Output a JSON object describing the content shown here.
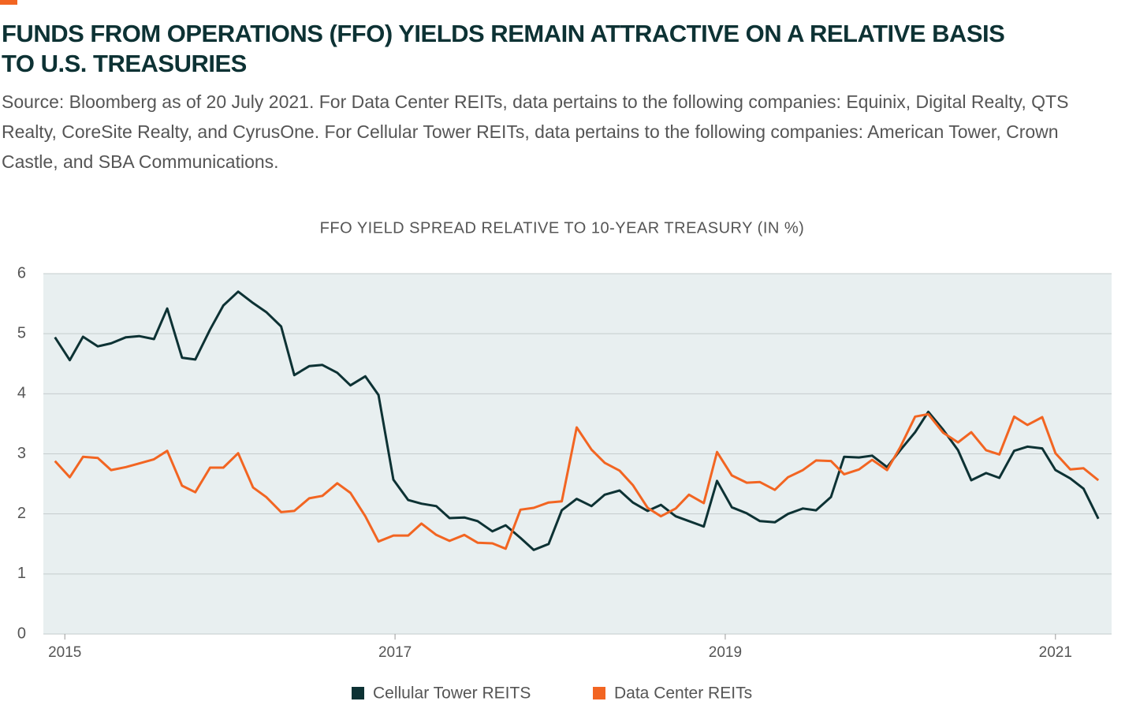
{
  "chart_data": {
    "type": "line",
    "title": "FUNDS FROM OPERATIONS (FFO) YIELDS REMAIN ATTRACTIVE ON A RELATIVE BASIS TO U.S. TREASURIES",
    "subtitle": "Source: Bloomberg as of 20 July 2021. For Data Center REITs, data pertains to the following companies: Equinix, Digital Realty, QTS Realty, CoreSite Realty, and CyrusOne. For Cellular Tower REITs, data pertains to the following companies: American Tower, Crown Castle, and SBA Communications.",
    "chart_title": "FFO YIELD SPREAD RELATIVE TO 10-YEAR TREASURY (IN %)",
    "x": [
      2014.94,
      2015.03,
      2015.11,
      2015.2,
      2015.28,
      2015.37,
      2015.45,
      2015.54,
      2015.62,
      2015.71,
      2015.79,
      2015.88,
      2015.96,
      2016.05,
      2016.14,
      2016.22,
      2016.31,
      2016.39,
      2016.48,
      2016.56,
      2016.65,
      2016.73,
      2016.82,
      2016.9,
      2016.99,
      2017.08,
      2017.16,
      2017.25,
      2017.33,
      2017.42,
      2017.5,
      2017.59,
      2017.67,
      2017.76,
      2017.84,
      2017.93,
      2018.01,
      2018.1,
      2018.19,
      2018.27,
      2018.36,
      2018.44,
      2018.53,
      2018.61,
      2018.7,
      2018.78,
      2018.87,
      2018.95,
      2019.04,
      2019.13,
      2019.21,
      2019.3,
      2019.38,
      2019.47,
      2019.55,
      2019.64,
      2019.72,
      2019.81,
      2019.89,
      2019.98,
      2020.06,
      2020.15,
      2020.23,
      2020.32,
      2020.41,
      2020.49,
      2020.58,
      2020.66,
      2020.75,
      2020.83,
      2020.92,
      2021.0,
      2021.09,
      2021.17,
      2021.26
    ],
    "series": [
      {
        "name": "Cellular Tower REITS",
        "color": "#0d3234",
        "values": [
          4.94,
          4.56,
          4.95,
          4.79,
          4.84,
          4.94,
          4.96,
          4.91,
          5.42,
          4.6,
          4.57,
          5.07,
          5.47,
          5.7,
          5.51,
          5.36,
          5.12,
          4.31,
          4.46,
          4.48,
          4.35,
          4.14,
          4.29,
          3.98,
          2.57,
          2.23,
          2.17,
          2.13,
          1.93,
          1.94,
          1.88,
          1.71,
          1.81,
          1.6,
          1.4,
          1.5,
          2.06,
          2.25,
          2.13,
          2.32,
          2.39,
          2.19,
          2.05,
          2.15,
          1.96,
          1.88,
          1.79,
          2.55,
          2.11,
          2.01,
          1.88,
          1.86,
          2.0,
          2.09,
          2.06,
          2.28,
          2.95,
          2.94,
          2.97,
          2.78,
          3.06,
          3.36,
          3.7,
          3.4,
          3.06,
          2.56,
          2.68,
          2.6,
          3.05,
          3.12,
          3.09,
          2.73,
          2.59,
          2.42,
          1.92
        ]
      },
      {
        "name": "Data Center REITs",
        "color": "#f26522",
        "values": [
          2.88,
          2.61,
          2.95,
          2.93,
          2.73,
          2.78,
          2.84,
          2.91,
          3.05,
          2.47,
          2.36,
          2.77,
          2.77,
          3.01,
          2.44,
          2.28,
          2.03,
          2.05,
          2.26,
          2.3,
          2.51,
          2.35,
          1.96,
          1.54,
          1.64,
          1.64,
          1.84,
          1.65,
          1.55,
          1.65,
          1.52,
          1.51,
          1.42,
          2.07,
          2.1,
          2.19,
          2.21,
          3.44,
          3.07,
          2.85,
          2.72,
          2.48,
          2.1,
          1.96,
          2.09,
          2.32,
          2.18,
          3.03,
          2.64,
          2.52,
          2.53,
          2.4,
          2.61,
          2.73,
          2.89,
          2.88,
          2.66,
          2.74,
          2.9,
          2.73,
          3.11,
          3.62,
          3.66,
          3.35,
          3.19,
          3.36,
          3.06,
          2.99,
          3.62,
          3.48,
          3.61,
          3.01,
          2.74,
          2.76,
          2.56
        ]
      }
    ],
    "xlim": [
      2014.87,
      2021.34
    ],
    "xticks": [
      2015,
      2017,
      2019,
      2021
    ],
    "ylim": [
      0,
      6
    ],
    "yticks": [
      0,
      1,
      2,
      3,
      4,
      5,
      6
    ],
    "grid": true,
    "legend": "bottom"
  }
}
